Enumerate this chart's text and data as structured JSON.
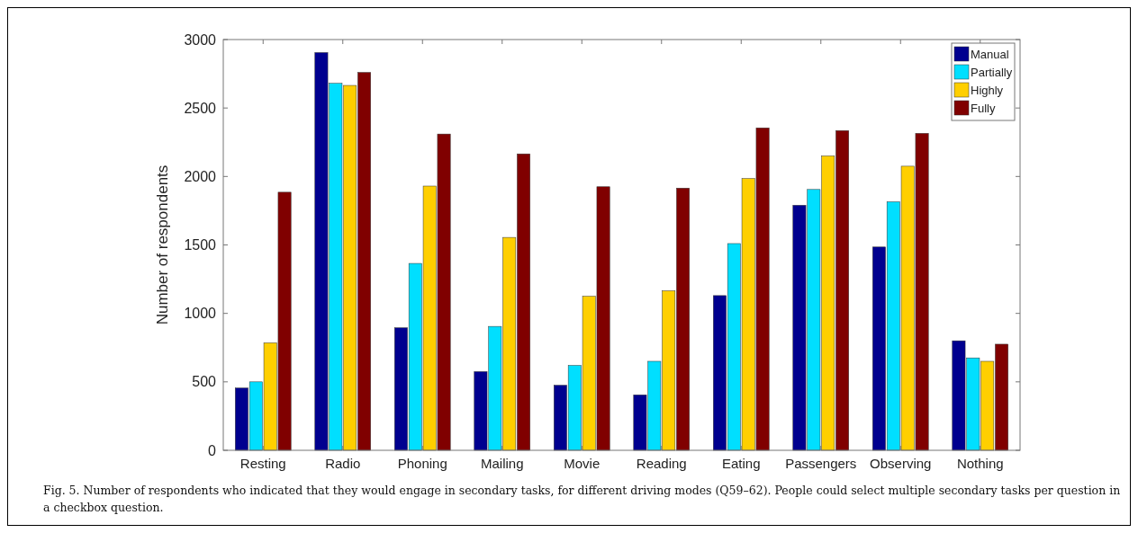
{
  "chart_data": {
    "type": "bar",
    "ylabel": "Number of respondents",
    "categories": [
      "Resting",
      "Radio",
      "Phoning",
      "Mailing",
      "Movie",
      "Reading",
      "Eating",
      "Passengers",
      "Observing",
      "Nothing"
    ],
    "series": [
      {
        "name": "Manual",
        "color": "#00008f",
        "values": [
          455,
          2905,
          895,
          575,
          475,
          405,
          1130,
          1790,
          1485,
          800
        ]
      },
      {
        "name": "Partially",
        "color": "#00dfff",
        "values": [
          500,
          2680,
          1365,
          905,
          620,
          650,
          1510,
          1905,
          1815,
          675
        ]
      },
      {
        "name": "Highly",
        "color": "#ffcf00",
        "values": [
          785,
          2665,
          1930,
          1555,
          1125,
          1165,
          1985,
          2150,
          2075,
          650
        ]
      },
      {
        "name": "Fully",
        "color": "#800000",
        "values": [
          1885,
          2760,
          2310,
          2165,
          1925,
          1915,
          2355,
          2335,
          2315,
          775
        ]
      }
    ],
    "ylim": [
      0,
      3000
    ],
    "yticks": [
      0,
      500,
      1000,
      1500,
      2000,
      2500,
      3000
    ],
    "grid": false,
    "legend": "top right",
    "annotations": [
      "Fig. 5. Number of respondents who indicated that they would engage in secondary tasks, for different driving modes (Q59–62). People could select multiple secondary tasks per question in a checkbox question."
    ]
  }
}
